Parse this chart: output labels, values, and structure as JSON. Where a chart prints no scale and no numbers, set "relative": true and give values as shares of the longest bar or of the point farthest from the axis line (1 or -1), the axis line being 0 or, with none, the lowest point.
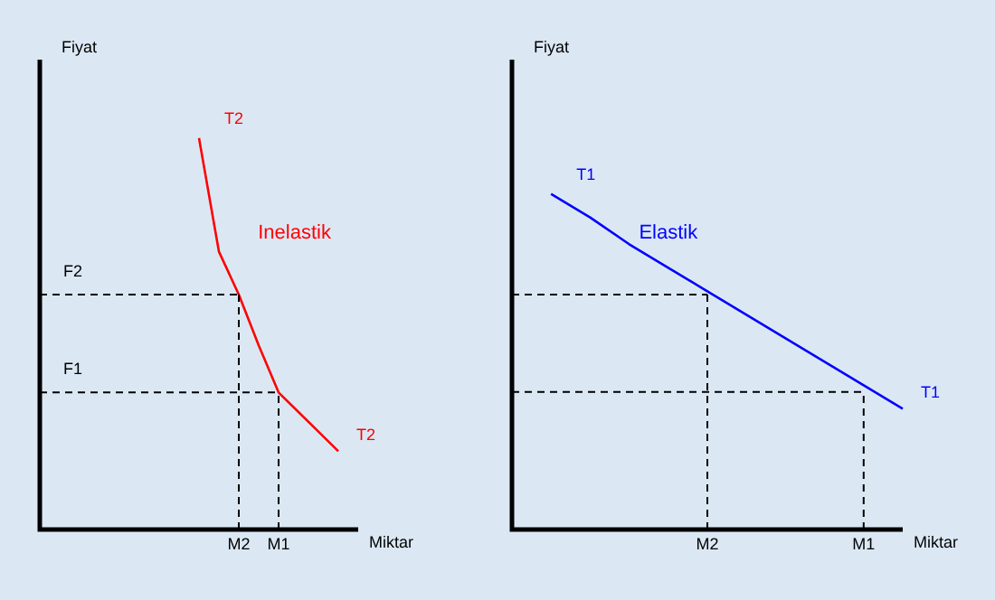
{
  "chart_data": [
    {
      "type": "line",
      "relative": true,
      "xlabel": "Miktar",
      "ylabel": "Fiyat",
      "categories": [
        null,
        null,
        null,
        null,
        null,
        null,
        null,
        null,
        null,
        null,
        "M2",
        null,
        "M1",
        null,
        null,
        null,
        null
      ],
      "series": [
        {
          "name": "T2",
          "color": "#ff0000",
          "values": [
            null,
            null,
            null,
            null,
            null,
            null,
            null,
            null,
            1,
            0.71,
            0.6,
            0.47,
            0.35,
            0.3,
            0.25,
            0.2,
            null
          ]
        }
      ],
      "ref_lines": [
        {
          "axis": "y",
          "value": 0.6,
          "label": "F2",
          "line_style": "dashed"
        },
        {
          "axis": "y",
          "value": 0.35,
          "label": "F1",
          "line_style": "dashed"
        },
        {
          "axis": "x",
          "value": "M2",
          "line_style": "dashed"
        },
        {
          "axis": "x",
          "value": "M1",
          "line_style": "dashed"
        }
      ],
      "annotations": [
        "Inelastik"
      ],
      "legend": false,
      "grid": false,
      "marker": "none",
      "line_style": "solid"
    },
    {
      "type": "line",
      "relative": true,
      "xlabel": "Miktar",
      "ylabel": "Fiyat",
      "categories": [
        null,
        null,
        null,
        null,
        null,
        "M2",
        null,
        null,
        null,
        "M1",
        null
      ],
      "series": [
        {
          "name": "T1",
          "color": "#0000ff",
          "values": [
            null,
            1,
            0.93,
            0.85,
            0.78,
            0.71,
            0.64,
            0.57,
            0.5,
            0.43,
            0.36
          ]
        }
      ],
      "ref_lines": [
        {
          "axis": "y",
          "value": 0.7,
          "line_style": "dashed"
        },
        {
          "axis": "y",
          "value": 0.41,
          "line_style": "dashed"
        },
        {
          "axis": "x",
          "value": "M2",
          "line_style": "dashed"
        },
        {
          "axis": "x",
          "value": "M1",
          "line_style": "dashed"
        }
      ],
      "annotations": [
        "Elastik"
      ],
      "legend": false,
      "grid": false,
      "marker": "none",
      "line_style": "solid"
    }
  ]
}
